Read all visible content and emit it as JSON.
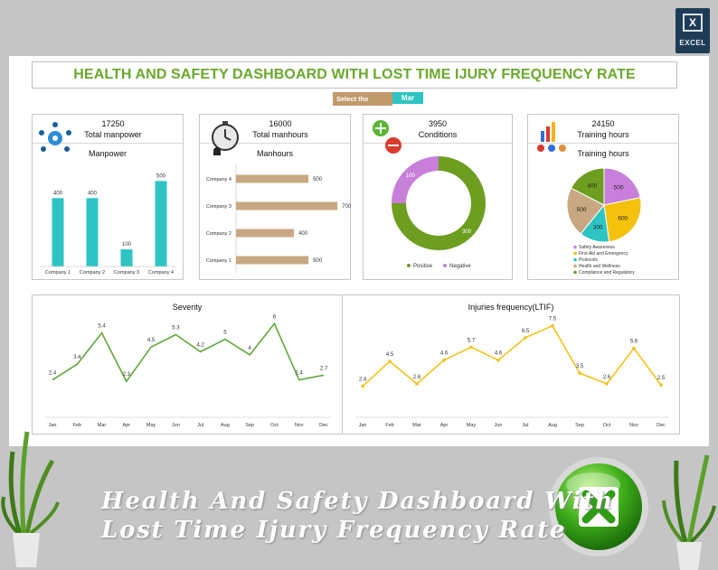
{
  "header": {
    "title": "HEALTH AND SAFETY DASHBOARD WITH LOST TIME IJURY FREQUENCY RATE",
    "month_label": "Select the month",
    "month_value": "Mar"
  },
  "badge": {
    "label": "EXCEL",
    "icon": "excel-icon"
  },
  "caption": {
    "line1": "Health And Safety Dashboard With",
    "line2": "Lost Time Ijury Frequency Rate"
  },
  "colors": {
    "teal": "#2ec4c4",
    "tan": "#c8a882",
    "green": "#6d9e1f",
    "purple": "#c77fd9",
    "yellow": "#f4c20d",
    "line_green": "#5fa83a",
    "line_yellow": "#f2c21b"
  },
  "cards": {
    "manpower": {
      "value": "17250",
      "label": "Total manpower",
      "chart_title": "Manpower",
      "icon": "team-gear-icon"
    },
    "manhours": {
      "value": "16000",
      "label": "Total manhours",
      "chart_title": "Manhours",
      "icon": "stopwatch-worker-icon"
    },
    "conditions": {
      "value": "3950",
      "label": "Conditions",
      "icon": "plus-minus-icon"
    },
    "training": {
      "value": "24150",
      "label": "Training hours",
      "chart_title": "Training hours",
      "icon": "training-chart-icon"
    }
  },
  "chart_data": [
    {
      "type": "bar",
      "title": "Manpower",
      "categories": [
        "Company 1",
        "Company 2",
        "Company 3",
        "Company 4"
      ],
      "values": [
        400,
        400,
        100,
        500
      ],
      "ylim": [
        0,
        560
      ]
    },
    {
      "type": "bar",
      "orientation": "horizontal",
      "title": "Manhours",
      "categories": [
        "Company 4",
        "Company 3",
        "Company 2",
        "Company 1"
      ],
      "values": [
        500,
        700,
        400,
        500
      ],
      "xlim": [
        0,
        760
      ]
    },
    {
      "type": "pie",
      "donut": true,
      "categories": [
        "Positive",
        "Negative"
      ],
      "values": [
        300,
        100
      ],
      "colors": [
        "#6d9e1f",
        "#c77fd9"
      ]
    },
    {
      "type": "pie",
      "title": "Training hours",
      "categories": [
        "Safety Awareness",
        "First Aid and Emergency",
        "Protocols",
        "Health and Wellness",
        "Compliance and Regulatory"
      ],
      "values": [
        500,
        600,
        300,
        500,
        400
      ],
      "colors": [
        "#c77fd9",
        "#f4c20d",
        "#2ec4c4",
        "#c8a882",
        "#6d9e1f"
      ]
    },
    {
      "type": "line",
      "title": "Severity",
      "x": [
        "Jan",
        "Feb",
        "Mar",
        "Apr",
        "May",
        "Jun",
        "Jul",
        "Aug",
        "Sep",
        "Oct",
        "Nov",
        "Dec"
      ],
      "values": [
        2.4,
        3.4,
        5.4,
        2.3,
        4.5,
        5.3,
        4.2,
        5,
        4,
        6,
        2.4,
        2.7
      ],
      "ylim": [
        0,
        7
      ]
    },
    {
      "type": "line",
      "title": "Injuries frequency(LTIF)",
      "x": [
        "Jan",
        "Feb",
        "Mar",
        "Apr",
        "May",
        "Jun",
        "Jul",
        "Aug",
        "Sep",
        "Oct",
        "Nov",
        "Dec"
      ],
      "values": [
        2.4,
        4.5,
        2.6,
        4.6,
        5.7,
        4.6,
        6.5,
        7.5,
        3.5,
        2.6,
        5.6,
        2.5
      ],
      "ylim": [
        0,
        9
      ]
    }
  ]
}
